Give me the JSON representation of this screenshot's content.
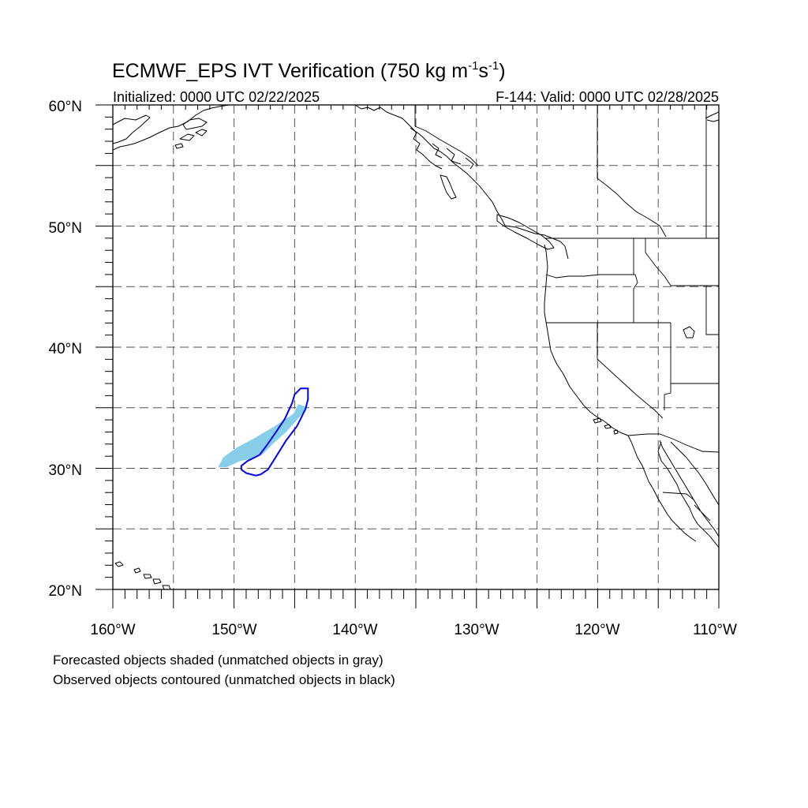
{
  "figure": {
    "title_main": "ECMWF_EPS IVT Verification (750 kg m",
    "title_sup1": "-1",
    "title_mid": "s",
    "title_sup2": "-1",
    "title_end": ")",
    "initialized": "Initialized: 0000 UTC 02/22/2025",
    "valid": "F-144: Valid: 0000 UTC 02/28/2025",
    "note_forecast": "Forecasted objects shaded (unmatched objects in gray)",
    "note_observed": "Observed objects contoured (unmatched objects in black)"
  },
  "map": {
    "lon_range": [
      -160,
      -110
    ],
    "lat_range": [
      20,
      60
    ],
    "grid_interval_deg": 5,
    "lon_labels": [
      "160°W",
      "150°W",
      "140°W",
      "130°W",
      "120°W",
      "110°W"
    ],
    "lat_labels": [
      "60°N",
      "50°N",
      "40°N",
      "30°N",
      "20°N"
    ],
    "forecast_color": "#87ceeb",
    "observed_color": "#0000ff",
    "forecast_object": [
      [
        -151.3,
        30.1
      ],
      [
        -150.9,
        30.9
      ],
      [
        -149.8,
        31.7
      ],
      [
        -148.3,
        32.5
      ],
      [
        -146.6,
        33.5
      ],
      [
        -145.1,
        34.5
      ],
      [
        -144.7,
        35.3
      ],
      [
        -144.1,
        35.1
      ],
      [
        -144.3,
        34.6
      ],
      [
        -144.9,
        33.9
      ],
      [
        -145.7,
        33.0
      ],
      [
        -146.7,
        32.1
      ],
      [
        -147.6,
        31.2
      ],
      [
        -148.4,
        30.8
      ],
      [
        -149.5,
        30.6
      ],
      [
        -150.6,
        30.1
      ]
    ],
    "observed_object": [
      [
        -149.4,
        29.9
      ],
      [
        -149.0,
        29.6
      ],
      [
        -148.2,
        29.4
      ],
      [
        -147.8,
        29.5
      ],
      [
        -147.2,
        29.9
      ],
      [
        -146.7,
        30.7
      ],
      [
        -145.7,
        32.3
      ],
      [
        -144.8,
        33.5
      ],
      [
        -144.1,
        34.9
      ],
      [
        -143.9,
        35.7
      ],
      [
        -143.9,
        36.6
      ],
      [
        -144.5,
        36.6
      ],
      [
        -145.0,
        36.1
      ],
      [
        -145.2,
        35.4
      ],
      [
        -145.8,
        34.1
      ],
      [
        -146.6,
        32.9
      ],
      [
        -147.3,
        31.9
      ],
      [
        -147.9,
        31.1
      ],
      [
        -148.9,
        30.6
      ],
      [
        -149.4,
        30.2
      ]
    ]
  }
}
